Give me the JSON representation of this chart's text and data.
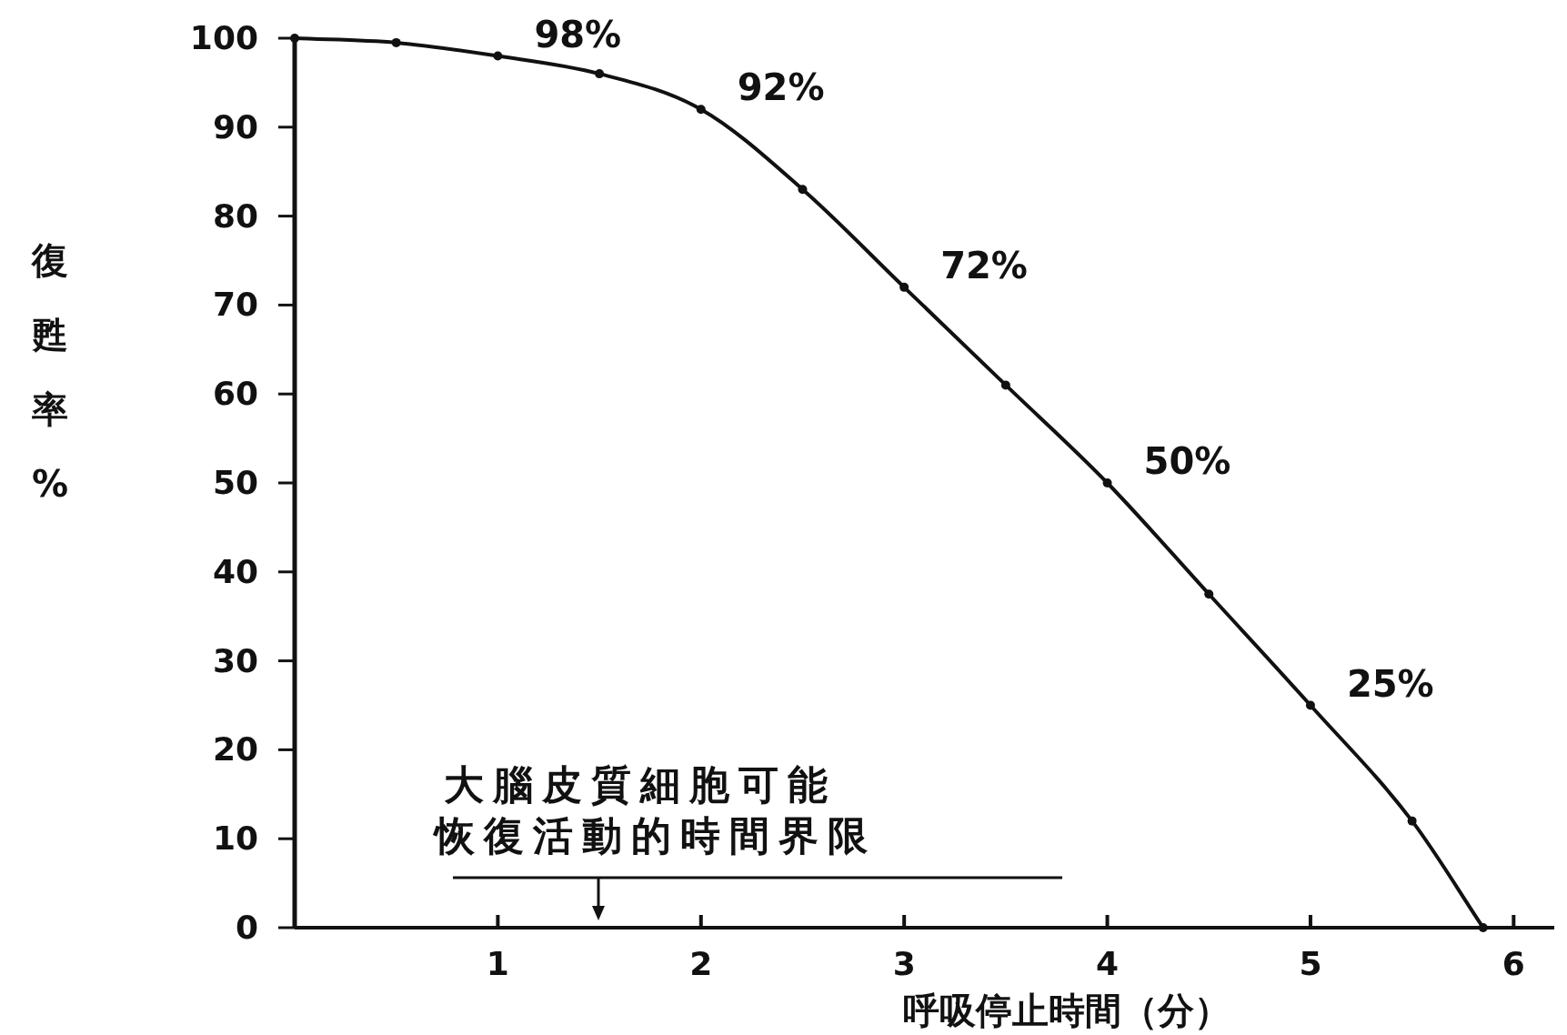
{
  "chart_data": {
    "type": "line",
    "xlabel": "呼吸停止時間（分）",
    "ylabel": "復甦率%",
    "x": [
      0,
      0.5,
      1,
      1.5,
      2,
      2.5,
      3,
      3.5,
      4,
      4.5,
      5,
      5.5,
      5.85
    ],
    "series": [
      {
        "color": "#111111",
        "values": [
          100,
          99.5,
          98,
          96,
          92,
          83,
          72,
          61,
          50,
          37.5,
          25,
          12,
          0
        ],
        "value_labels": [
          null,
          null,
          "98%",
          null,
          "92%",
          null,
          "72%",
          null,
          "50%",
          null,
          "25%",
          null,
          null
        ]
      }
    ],
    "xlim": [
      0,
      6.2
    ],
    "ylim": [
      0,
      100
    ],
    "xticks": [
      1,
      2,
      3,
      4,
      5,
      6
    ],
    "yticks": [
      0,
      10,
      20,
      30,
      40,
      50,
      60,
      70,
      80,
      90,
      100
    ],
    "grid": false,
    "marker": "circle",
    "line_style": "solid",
    "annotations": [
      "大腦皮質細胞可能恢復活動的時間界限"
    ]
  }
}
